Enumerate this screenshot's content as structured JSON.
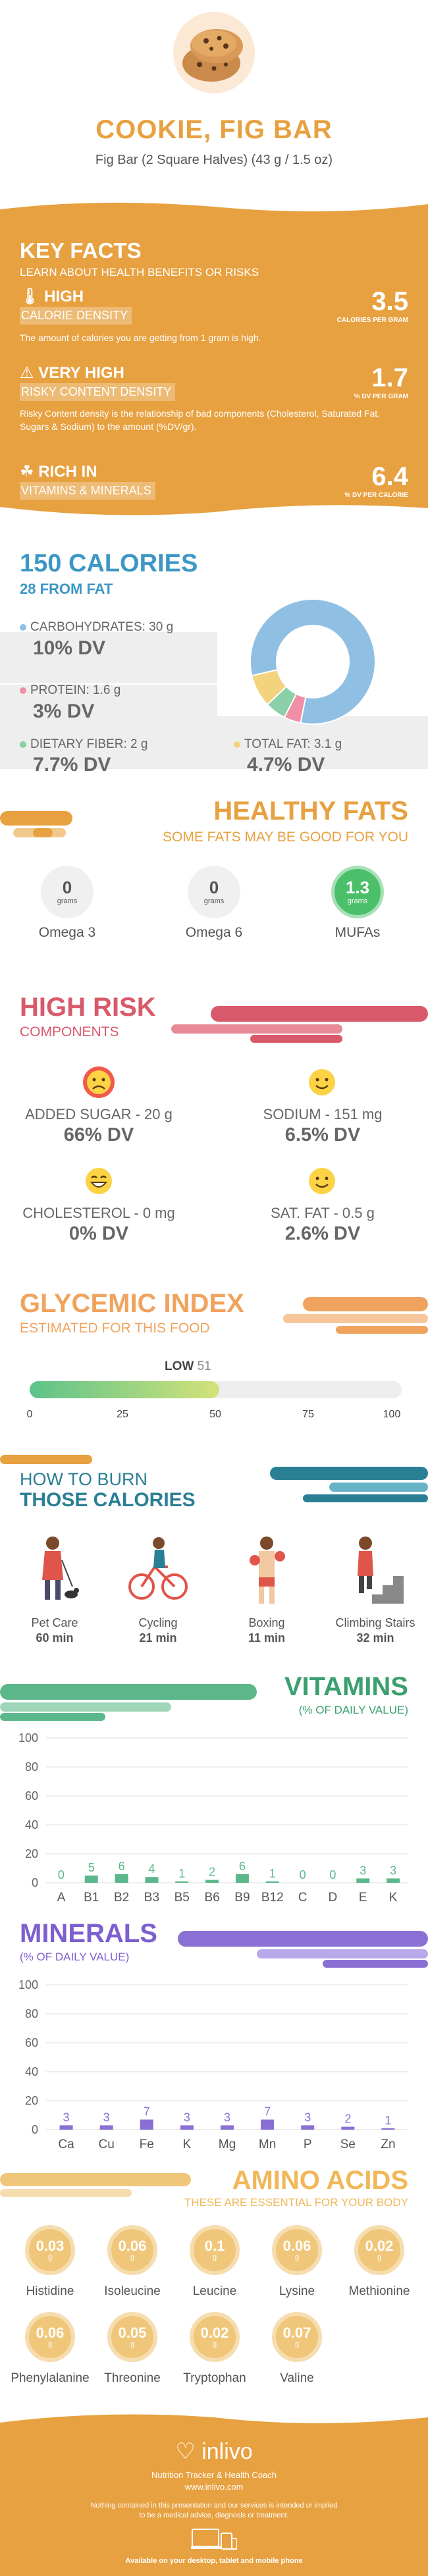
{
  "header": {
    "title": "COOKIE, FIG BAR",
    "subtitle": "Fig Bar (2 Square Halves) (43 g / 1.5 oz)"
  },
  "key_facts": {
    "title": "KEY FACTS",
    "subtitle": "LEARN ABOUT HEALTH BENEFITS OR RISKS",
    "facts": [
      {
        "level": "HIGH",
        "name": "CALORIE DENSITY",
        "value": "3.5",
        "unit": "CALORIES PER GRAM",
        "description": "The amount of calories you are getting from 1 gram is high."
      },
      {
        "level": "VERY HIGH",
        "name": "RISKY CONTENT DENSITY",
        "value": "1.7",
        "unit": "% DV PER GRAM",
        "description": "Risky Content density is the relationship of bad components (Cholesterol, Saturated Fat, Sugars & Sodium) to the amount (%DV/gr)."
      },
      {
        "level": "RICH IN",
        "name": "VITAMINS & MINERALS",
        "value": "6.4",
        "unit": "% DV PER CALORIE",
        "description": ""
      }
    ]
  },
  "calories": {
    "title": "150 CALORIES",
    "subtitle": "28 FROM FAT",
    "items": [
      {
        "label": "CARBOHYDRATES: 30 g",
        "dv": "10% DV",
        "color": "#8fbfe3"
      },
      {
        "label": "PROTEIN: 1.6 g",
        "dv": "3% DV",
        "color": "#f08fa7"
      },
      {
        "label": "DIETARY FIBER: 2 g",
        "dv": "7.7% DV",
        "color": "#8bd0a6"
      },
      {
        "label": "TOTAL FAT: 3.1 g",
        "dv": "4.7% DV",
        "color": "#f4d37e"
      }
    ],
    "donut": [
      {
        "name": "carbohydrates",
        "value": 30,
        "color": "#8fbfe3"
      },
      {
        "name": "protein",
        "value": 1.6,
        "color": "#f08fa7"
      },
      {
        "name": "fiber",
        "value": 2,
        "color": "#8bd0a6"
      },
      {
        "name": "fat",
        "value": 3.1,
        "color": "#f4d37e"
      }
    ]
  },
  "healthy_fats": {
    "title": "HEALTHY FATS",
    "subtitle": "SOME FATS MAY BE GOOD FOR YOU",
    "items": [
      {
        "value": "0",
        "unit": "grams",
        "label": "Omega 3"
      },
      {
        "value": "0",
        "unit": "grams",
        "label": "Omega 6"
      },
      {
        "value": "1.3",
        "unit": "grams",
        "label": "MUFAs"
      }
    ]
  },
  "high_risk": {
    "title": "HIGH RISK",
    "subtitle": "COMPONENTS",
    "items": [
      {
        "label": "ADDED SUGAR - 20 g",
        "dv": "66% DV",
        "face": "sad"
      },
      {
        "label": "SODIUM - 151 mg",
        "dv": "6.5% DV",
        "face": "happy"
      },
      {
        "label": "CHOLESTEROL - 0 mg",
        "dv": "0% DV",
        "face": "laugh"
      },
      {
        "label": "SAT. FAT - 0.5 g",
        "dv": "2.6% DV",
        "face": "happy"
      }
    ]
  },
  "glycemic": {
    "title": "GLYCEMIC INDEX",
    "subtitle": "ESTIMATED FOR THIS FOOD",
    "level": "LOW",
    "value": 51,
    "value_text": "51",
    "ticks": [
      "0",
      "25",
      "50",
      "75",
      "100"
    ]
  },
  "burn": {
    "title_line1": "HOW TO BURN",
    "title_line2": "THOSE CALORIES",
    "items": [
      {
        "label": "Pet Care",
        "value": "60 min"
      },
      {
        "label": "Cycling",
        "value": "21 min"
      },
      {
        "label": "Boxing",
        "value": "11 min"
      },
      {
        "label": "Climbing Stairs",
        "value": "32 min"
      }
    ]
  },
  "vitamins": {
    "title": "VITAMINS",
    "subtitle": "(% OF DAILY VALUE)",
    "chart_data": {
      "type": "bar",
      "categories": [
        "A",
        "B1",
        "B2",
        "B3",
        "B5",
        "B6",
        "B9",
        "B12",
        "C",
        "D",
        "E",
        "K"
      ],
      "values": [
        0,
        5,
        6,
        4,
        1,
        2,
        6,
        1,
        0,
        0,
        3,
        3
      ],
      "value_labels": [
        "0",
        "5",
        "6",
        "4",
        "1",
        "2",
        "6",
        "1",
        "0",
        "0",
        "3",
        "3"
      ],
      "ylim": [
        0,
        100
      ],
      "yticks": [
        "0",
        "20",
        "40",
        "60",
        "80",
        "100"
      ],
      "color": "#5cb88a"
    }
  },
  "minerals": {
    "title": "MINERALS",
    "subtitle": "(% OF DAILY VALUE)",
    "chart_data": {
      "type": "bar",
      "categories": [
        "Ca",
        "Cu",
        "Fe",
        "K",
        "Mg",
        "Mn",
        "P",
        "Se",
        "Zn"
      ],
      "values": [
        3,
        3,
        7,
        3,
        3,
        7,
        3,
        2,
        1
      ],
      "value_labels": [
        "3",
        "3",
        "7",
        "3",
        "3",
        "7",
        "3",
        "2",
        "1"
      ],
      "ylim": [
        0,
        100
      ],
      "yticks": [
        "0",
        "20",
        "40",
        "60",
        "80",
        "100"
      ],
      "color": "#8a6fd4"
    }
  },
  "amino": {
    "title": "AMINO ACIDS",
    "subtitle": "THESE ARE ESSENTIAL FOR YOUR BODY",
    "unit": "g",
    "items": [
      {
        "value": "0.03",
        "label": "Histidine"
      },
      {
        "value": "0.06",
        "label": "Isoleucine"
      },
      {
        "value": "0.1",
        "label": "Leucine"
      },
      {
        "value": "0.06",
        "label": "Lysine"
      },
      {
        "value": "0.02",
        "label": "Methionine"
      },
      {
        "value": "0.06",
        "label": "Phenylalanine"
      },
      {
        "value": "0.05",
        "label": "Threonine"
      },
      {
        "value": "0.02",
        "label": "Tryptophan"
      },
      {
        "value": "0.07",
        "label": "Valine"
      }
    ]
  },
  "footer": {
    "brand": "inlivo",
    "tagline": "Nutrition Tracker & Health Coach",
    "url": "www.inlivo.com",
    "disclaimer_line1": "Nothing contained in this presentation and our services is intended or implied",
    "disclaimer_line2": "to be a medical advice, diagnosis or treatment.",
    "available": "Available on your desktop, tablet and mobile phone"
  }
}
